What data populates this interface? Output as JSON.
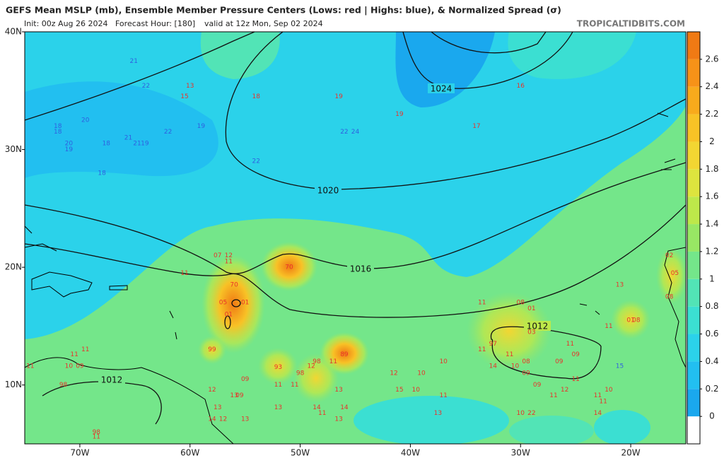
{
  "chart_data": {
    "type": "map",
    "title": "GEFS Mean MSLP (mb), Ensemble Member Pressure Centers (Lows: red | Highs: blue), & Normalized Spread (σ)",
    "init": "Init: 00z Aug 26 2024",
    "forecast_hour": "Forecast Hour: [180]",
    "valid": "valid at 12z Mon, Sep 02 2024",
    "source": "TROPICALTIDBITS.COM",
    "xlim": [
      -75,
      -15
    ],
    "ylim": [
      5,
      40
    ],
    "xticks": [
      {
        "value": -70,
        "label": "70W"
      },
      {
        "value": -60,
        "label": "60W"
      },
      {
        "value": -50,
        "label": "50W"
      },
      {
        "value": -40,
        "label": "40W"
      },
      {
        "value": -30,
        "label": "30W"
      },
      {
        "value": -20,
        "label": "20W"
      }
    ],
    "yticks": [
      {
        "value": 10,
        "label": "10N"
      },
      {
        "value": 20,
        "label": "20N"
      },
      {
        "value": 30,
        "label": "30N"
      },
      {
        "value": 40,
        "label": "40N"
      }
    ],
    "isobar_labels": [
      1024,
      1020,
      1016,
      1012,
      1012
    ],
    "colorbar": {
      "lim": [
        -0.2,
        2.8
      ],
      "ticks": [
        0,
        0.2,
        0.4,
        0.6,
        0.8,
        1,
        1.2,
        1.4,
        1.6,
        1.8,
        2,
        2.2,
        2.4,
        2.6
      ],
      "colors": [
        "#ffffff",
        "#1aa8ee",
        "#22bff0",
        "#2bd2ea",
        "#3bdfd2",
        "#52e4b6",
        "#74e68a",
        "#98e764",
        "#bde84a",
        "#dde43e",
        "#f2d632",
        "#f8c226",
        "#f8aa1c",
        "#f69218",
        "#f07a14"
      ]
    },
    "highs": {
      "color": "#2f5fe0",
      "centers": [
        {
          "label": "21",
          "lon": -65.1,
          "lat": 37.5
        },
        {
          "label": "22",
          "lon": -64.0,
          "lat": 35.4
        },
        {
          "label": "20",
          "lon": -69.5,
          "lat": 32.5
        },
        {
          "label": "18",
          "lon": -72.0,
          "lat": 32.0
        },
        {
          "label": "18",
          "lon": -72.0,
          "lat": 31.5
        },
        {
          "label": "20",
          "lon": -71.0,
          "lat": 30.5
        },
        {
          "label": "19",
          "lon": -71.0,
          "lat": 30.0
        },
        {
          "label": "18",
          "lon": -67.6,
          "lat": 30.5
        },
        {
          "label": "21",
          "lon": -65.6,
          "lat": 31.0
        },
        {
          "label": "21",
          "lon": -64.8,
          "lat": 30.5
        },
        {
          "label": "19",
          "lon": -64.1,
          "lat": 30.5
        },
        {
          "label": "22",
          "lon": -62.0,
          "lat": 31.5
        },
        {
          "label": "19",
          "lon": -59.0,
          "lat": 32.0
        },
        {
          "label": "18",
          "lon": -68.0,
          "lat": 28.0
        },
        {
          "label": "22",
          "lon": -54.0,
          "lat": 29.0
        },
        {
          "label": "22",
          "lon": -46.0,
          "lat": 31.5
        },
        {
          "label": "24",
          "lon": -45.0,
          "lat": 31.5
        },
        {
          "label": "15",
          "lon": -21.0,
          "lat": 11.6
        }
      ]
    },
    "lows": {
      "color": "#e8332b",
      "centers": [
        {
          "label": "13",
          "lon": -60.0,
          "lat": 35.4
        },
        {
          "label": "15",
          "lon": -60.5,
          "lat": 34.5
        },
        {
          "label": "18",
          "lon": -54.0,
          "lat": 34.5
        },
        {
          "label": "19",
          "lon": -46.5,
          "lat": 34.5
        },
        {
          "label": "19",
          "lon": -41.0,
          "lat": 33.0
        },
        {
          "label": "16",
          "lon": -30.0,
          "lat": 35.4
        },
        {
          "label": "17",
          "lon": -34.0,
          "lat": 32.0
        },
        {
          "label": "07",
          "lon": -57.5,
          "lat": 21.0
        },
        {
          "label": "12",
          "lon": -56.5,
          "lat": 21.0
        },
        {
          "label": "11",
          "lon": -56.5,
          "lat": 20.5
        },
        {
          "label": "11",
          "lon": -60.5,
          "lat": 19.5
        },
        {
          "label": "70",
          "lon": -51.0,
          "lat": 20.0
        },
        {
          "label": "70",
          "lon": -56.0,
          "lat": 18.5
        },
        {
          "label": "05",
          "lon": -57.0,
          "lat": 17.0
        },
        {
          "label": "01",
          "lon": -55.0,
          "lat": 17.0
        },
        {
          "label": "01",
          "lon": -56.5,
          "lat": 16.0
        },
        {
          "label": "99",
          "lon": -58.0,
          "lat": 13.0
        },
        {
          "label": "93",
          "lon": -52.0,
          "lat": 11.5
        },
        {
          "label": "98",
          "lon": -48.5,
          "lat": 12.0
        },
        {
          "label": "12",
          "lon": -49.0,
          "lat": 11.6
        },
        {
          "label": "98",
          "lon": -50.0,
          "lat": 11.0
        },
        {
          "label": "89",
          "lon": -46.0,
          "lat": 12.6
        },
        {
          "label": "11",
          "lon": -47.0,
          "lat": 12.0
        },
        {
          "label": "09",
          "lon": -55.0,
          "lat": 10.5
        },
        {
          "label": "11",
          "lon": -52.0,
          "lat": 10.0
        },
        {
          "label": "11",
          "lon": -50.5,
          "lat": 10.0
        },
        {
          "label": "13",
          "lon": -46.5,
          "lat": 9.6
        },
        {
          "label": "12",
          "lon": -58.0,
          "lat": 9.6
        },
        {
          "label": "13",
          "lon": -56.0,
          "lat": 9.1
        },
        {
          "label": "09",
          "lon": -55.5,
          "lat": 9.1
        },
        {
          "label": "13",
          "lon": -57.5,
          "lat": 8.1
        },
        {
          "label": "14",
          "lon": -58.0,
          "lat": 7.1
        },
        {
          "label": "12",
          "lon": -57.0,
          "lat": 7.1
        },
        {
          "label": "13",
          "lon": -55.0,
          "lat": 7.1
        },
        {
          "label": "13",
          "lon": -52.0,
          "lat": 8.1
        },
        {
          "label": "14",
          "lon": -48.5,
          "lat": 8.1
        },
        {
          "label": "14",
          "lon": -46.0,
          "lat": 8.1
        },
        {
          "label": "11",
          "lon": -48.0,
          "lat": 7.6
        },
        {
          "label": "13",
          "lon": -46.5,
          "lat": 7.1
        },
        {
          "label": "12",
          "lon": -41.5,
          "lat": 11.0
        },
        {
          "label": "10",
          "lon": -39.0,
          "lat": 11.0
        },
        {
          "label": "10",
          "lon": -37.0,
          "lat": 12.0
        },
        {
          "label": "15",
          "lon": -41.0,
          "lat": 9.6
        },
        {
          "label": "10",
          "lon": -39.5,
          "lat": 9.6
        },
        {
          "label": "11",
          "lon": -37.0,
          "lat": 9.1
        },
        {
          "label": "13",
          "lon": -37.5,
          "lat": 7.6
        },
        {
          "label": "11",
          "lon": -33.5,
          "lat": 17.0
        },
        {
          "label": "08",
          "lon": -30.0,
          "lat": 17.0
        },
        {
          "label": "01",
          "lon": -29.0,
          "lat": 16.5
        },
        {
          "label": "03",
          "lon": -29.0,
          "lat": 14.5
        },
        {
          "label": "97",
          "lon": -32.5,
          "lat": 13.5
        },
        {
          "label": "11",
          "lon": -33.5,
          "lat": 13.0
        },
        {
          "label": "11",
          "lon": -31.0,
          "lat": 12.6
        },
        {
          "label": "08",
          "lon": -29.5,
          "lat": 12.0
        },
        {
          "label": "14",
          "lon": -32.5,
          "lat": 11.6
        },
        {
          "label": "10",
          "lon": -30.5,
          "lat": 11.6
        },
        {
          "label": "09",
          "lon": -29.5,
          "lat": 11.0
        },
        {
          "label": "09",
          "lon": -26.5,
          "lat": 12.0
        },
        {
          "label": "11",
          "lon": -25.5,
          "lat": 13.5
        },
        {
          "label": "09",
          "lon": -25.0,
          "lat": 12.6
        },
        {
          "label": "11",
          "lon": -25.0,
          "lat": 10.5
        },
        {
          "label": "09",
          "lon": -28.5,
          "lat": 10.0
        },
        {
          "label": "12",
          "lon": -26.0,
          "lat": 9.6
        },
        {
          "label": "11",
          "lon": -27.0,
          "lat": 9.1
        },
        {
          "label": "11",
          "lon": -23.0,
          "lat": 9.1
        },
        {
          "label": "10",
          "lon": -22.0,
          "lat": 9.6
        },
        {
          "label": "11",
          "lon": -22.5,
          "lat": 8.6
        },
        {
          "label": "10",
          "lon": -30.0,
          "lat": 7.6
        },
        {
          "label": "22",
          "lon": -29.0,
          "lat": 7.6
        },
        {
          "label": "14",
          "lon": -23.0,
          "lat": 7.6
        },
        {
          "label": "13",
          "lon": -21.0,
          "lat": 18.5
        },
        {
          "label": "11",
          "lon": -22.0,
          "lat": 15.0
        },
        {
          "label": "01",
          "lon": -20.0,
          "lat": 15.5
        },
        {
          "label": "08",
          "lon": -19.5,
          "lat": 15.5
        },
        {
          "label": "02",
          "lon": -16.5,
          "lat": 21.0
        },
        {
          "label": "05",
          "lon": -16.0,
          "lat": 19.5
        },
        {
          "label": "08",
          "lon": -16.5,
          "lat": 17.5
        },
        {
          "label": "11",
          "lon": -69.5,
          "lat": 13.0
        },
        {
          "label": "11",
          "lon": -70.5,
          "lat": 12.6
        },
        {
          "label": "11",
          "lon": -74.5,
          "lat": 11.6
        },
        {
          "label": "10",
          "lon": -71.0,
          "lat": 11.6
        },
        {
          "label": "09",
          "lon": -70.0,
          "lat": 11.6
        },
        {
          "label": "98",
          "lon": -71.5,
          "lat": 10.0
        },
        {
          "label": "98",
          "lon": -68.5,
          "lat": 6.0
        },
        {
          "label": "11",
          "lon": -68.5,
          "lat": 5.6
        }
      ]
    }
  }
}
